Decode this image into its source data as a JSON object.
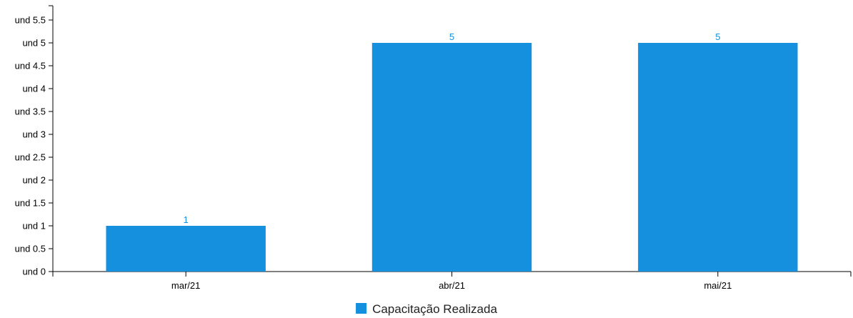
{
  "chart_data": {
    "type": "bar",
    "title": "",
    "xlabel": "",
    "ylabel": "",
    "categories": [
      "mar/21",
      "abr/21",
      "mai/21"
    ],
    "series": [
      {
        "name": "Capacitação Realizada",
        "values": [
          1,
          5,
          5
        ],
        "color": "#1490df"
      }
    ],
    "data_labels": [
      "1",
      "5",
      "5"
    ],
    "ylim": [
      0,
      5.5
    ],
    "y_ticks": [
      0,
      0.5,
      1,
      1.5,
      2,
      2.5,
      3,
      3.5,
      4,
      4.5,
      5,
      5.5
    ],
    "y_tick_labels": [
      "und 0",
      "und 0.5",
      "und 1",
      "und 1.5",
      "und 2",
      "und 2.5",
      "und 3",
      "und 3.5",
      "und 4",
      "und 4.5",
      "und 5",
      "und 5.5"
    ],
    "grid": false,
    "legend_position": "bottom-center"
  }
}
